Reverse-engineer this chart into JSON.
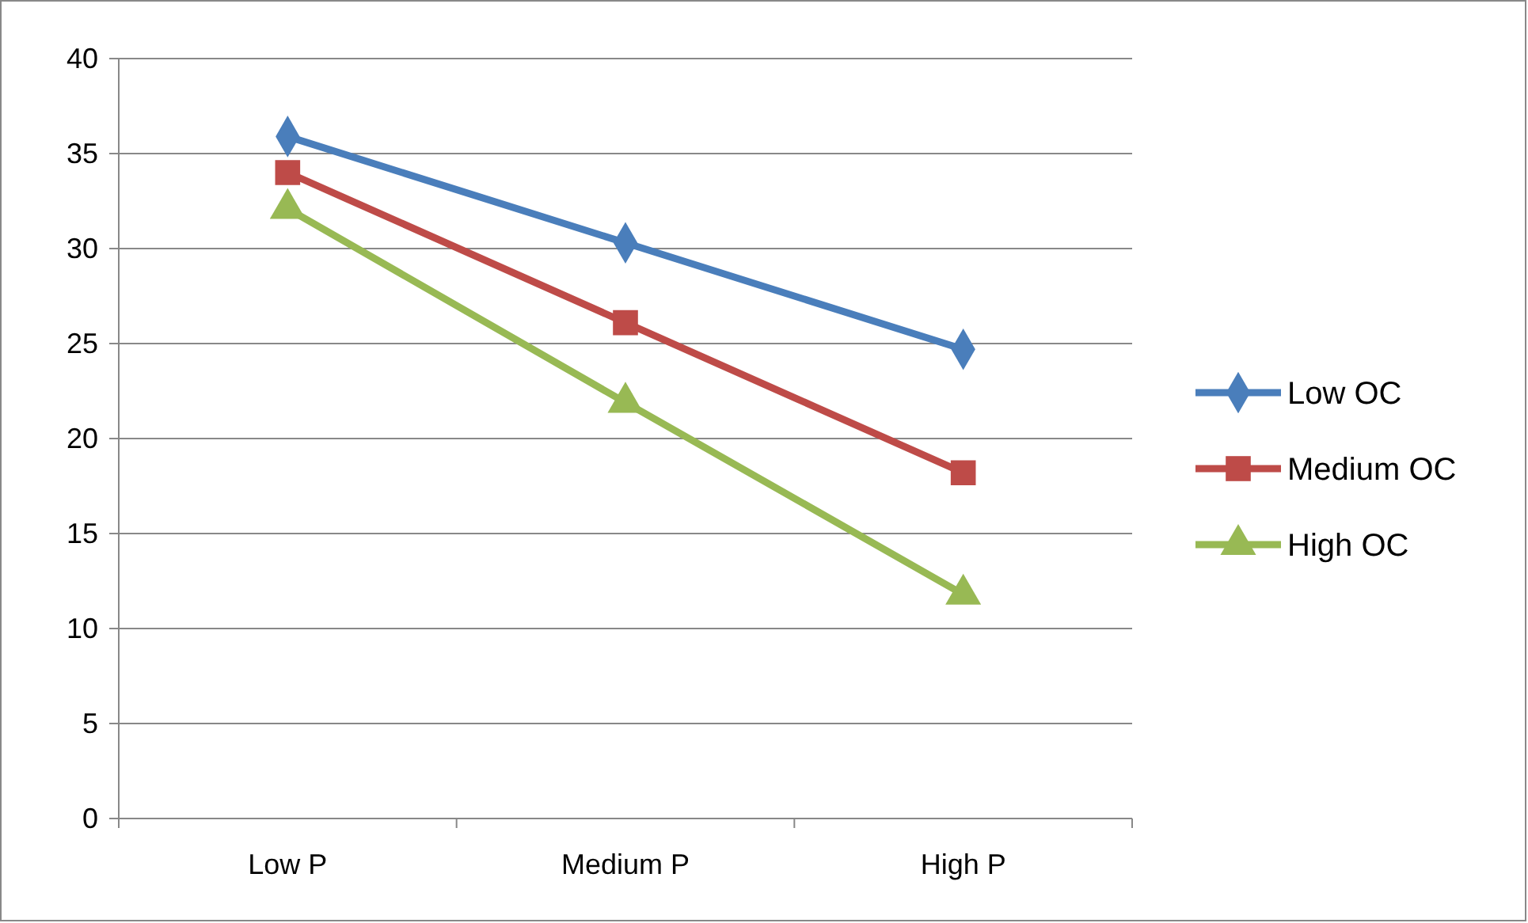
{
  "chart_data": {
    "type": "line",
    "categories": [
      "Low P",
      "Medium P",
      "High P"
    ],
    "series": [
      {
        "name": "Low OC",
        "color": "#4a7ebb",
        "marker": "diamond",
        "values": [
          35.9,
          30.3,
          24.7
        ]
      },
      {
        "name": "Medium OC",
        "color": "#be4b48",
        "marker": "square",
        "values": [
          34.0,
          26.1,
          18.2
        ]
      },
      {
        "name": "High OC",
        "color": "#98b954",
        "marker": "triangle",
        "values": [
          32.1,
          21.9,
          11.8
        ]
      }
    ],
    "ylim": [
      0,
      40
    ],
    "yticks": [
      0,
      5,
      10,
      15,
      20,
      25,
      30,
      35,
      40
    ],
    "grid": "y",
    "legend": "right"
  }
}
